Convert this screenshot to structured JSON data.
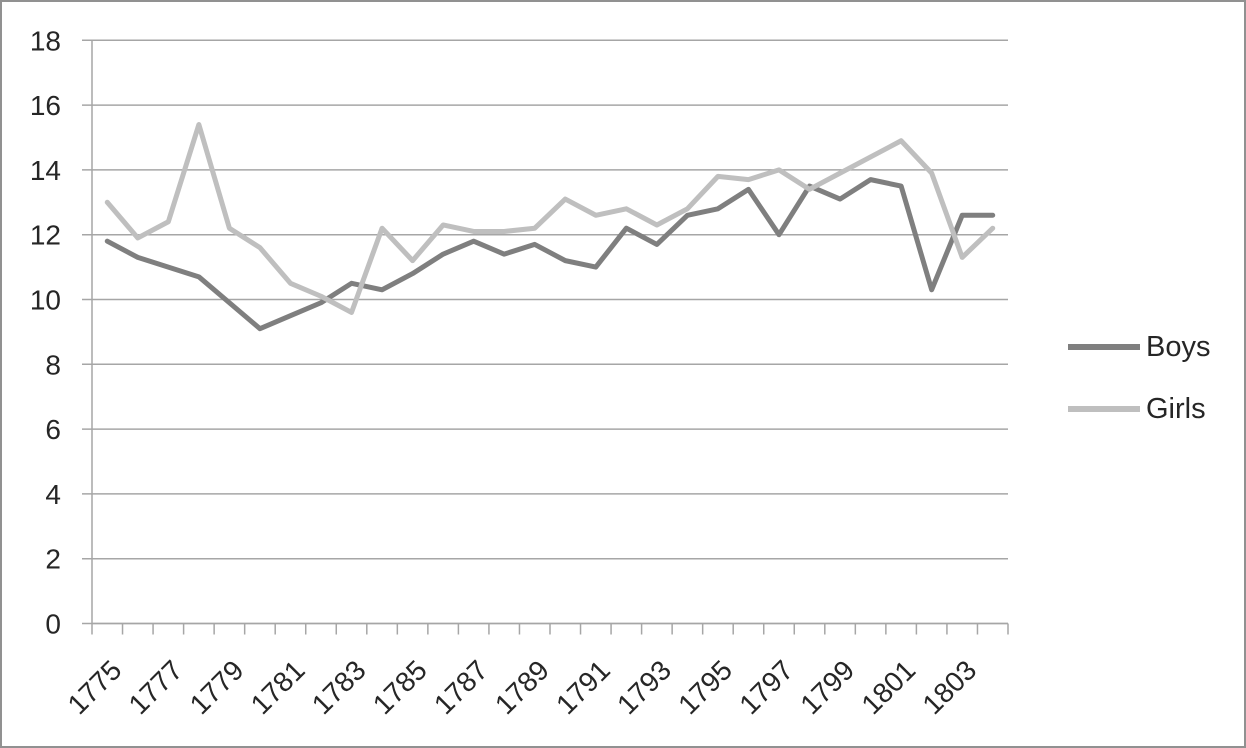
{
  "chart_data": {
    "type": "line",
    "title": "",
    "xlabel": "",
    "ylabel": "",
    "x": [
      1775,
      1776,
      1777,
      1778,
      1779,
      1780,
      1781,
      1782,
      1783,
      1784,
      1785,
      1786,
      1787,
      1788,
      1789,
      1790,
      1791,
      1792,
      1793,
      1794,
      1795,
      1796,
      1797,
      1798,
      1799,
      1800,
      1801,
      1802,
      1803,
      1804
    ],
    "x_tick_labels": [
      "1775",
      "1777",
      "1779",
      "1781",
      "1783",
      "1785",
      "1787",
      "1789",
      "1791",
      "1793",
      "1795",
      "1797",
      "1799",
      "1801",
      "1803"
    ],
    "series": [
      {
        "name": "Boys",
        "color": "#7f7f7f",
        "values": [
          11.8,
          11.3,
          11.0,
          10.7,
          9.9,
          9.1,
          9.5,
          9.9,
          10.5,
          10.3,
          10.8,
          11.4,
          11.8,
          11.4,
          11.7,
          11.2,
          11.0,
          12.2,
          11.7,
          12.6,
          12.8,
          13.4,
          12.0,
          13.5,
          13.1,
          13.7,
          13.5,
          10.3,
          12.6,
          12.6
        ]
      },
      {
        "name": "Girls",
        "color": "#bfbfbf",
        "values": [
          13.0,
          11.9,
          12.4,
          15.4,
          12.2,
          11.6,
          10.5,
          10.1,
          9.6,
          12.2,
          11.2,
          12.3,
          12.1,
          12.1,
          12.2,
          13.1,
          12.6,
          12.8,
          12.3,
          12.8,
          13.8,
          13.7,
          14.0,
          13.4,
          13.9,
          14.4,
          14.9,
          13.9,
          11.3,
          12.2
        ]
      }
    ],
    "ylim": [
      0,
      18
    ],
    "y_ticks": [
      0,
      2,
      4,
      6,
      8,
      10,
      12,
      14,
      16,
      18
    ],
    "y_tick_labels": [
      "0",
      "2",
      "4",
      "6",
      "8",
      "10",
      "12",
      "14",
      "16",
      "18"
    ],
    "grid": "horizontal",
    "legend_position": "right",
    "axis_color": "#a6a6a6",
    "label_color": "#262626"
  }
}
